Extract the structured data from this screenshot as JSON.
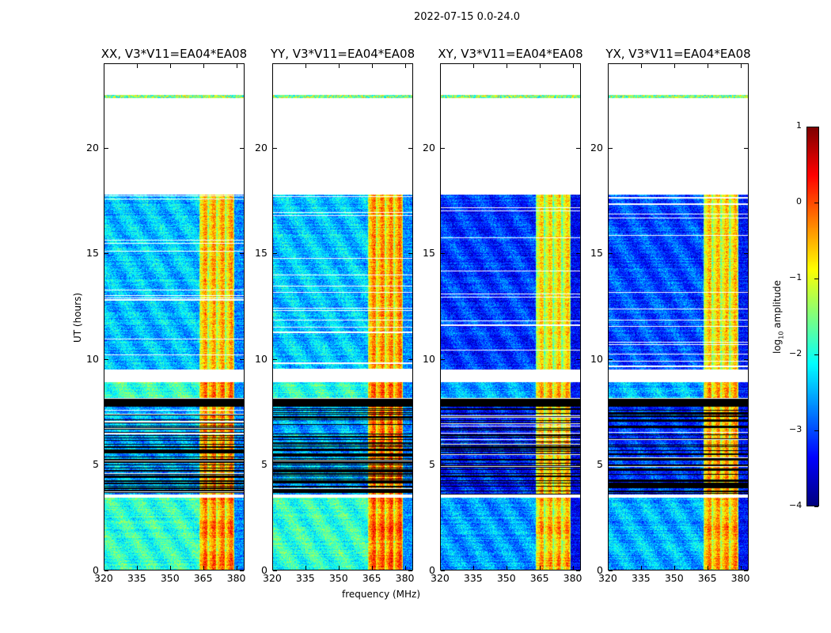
{
  "figure": {
    "suptitle": "2022-07-15 0.0-24.0",
    "xlabel": "frequency (MHz)",
    "ylabel": "UT (hours)",
    "colorbar_label_prefix": "log",
    "colorbar_label_sub": "10",
    "colorbar_label_suffix": " amplitude"
  },
  "chart_data": {
    "type": "heatmap",
    "colormap": "jet",
    "xlim": [
      320,
      383.7
    ],
    "ylim": [
      0,
      24
    ],
    "xticks": [
      320,
      335,
      350,
      365,
      380
    ],
    "yticks": [
      0,
      5,
      10,
      15,
      20
    ],
    "colorbar": {
      "range": [
        -4,
        1
      ],
      "ticks": [
        "1",
        "0",
        "−1",
        "−2",
        "−3",
        "−4"
      ],
      "tick_values": [
        1,
        0,
        -1,
        -2,
        -3,
        -4
      ]
    },
    "bright_band_MHz": [
      363.5,
      379.5
    ],
    "edge_band_MHz": [
      379.5,
      383.7
    ],
    "segments_hours": [
      {
        "range": [
          0,
          3.4
        ],
        "kind": "quiet"
      },
      {
        "range": [
          3.55,
          7.75
        ],
        "kind": "flagged"
      },
      {
        "range": [
          7.75,
          8.1
        ],
        "kind": "black"
      },
      {
        "range": [
          8.15,
          8.9
        ],
        "kind": "quiet"
      },
      {
        "range": [
          9.5,
          17.8
        ],
        "kind": "active"
      },
      {
        "range": [
          22.4,
          22.55
        ],
        "kind": "thin"
      }
    ],
    "panels": [
      {
        "title": "XX, V3*V11=EA04*EA08",
        "background_level": -1.9,
        "band_level": -0.35
      },
      {
        "title": "YY, V3*V11=EA04*EA08",
        "background_level": -1.9,
        "band_level": -0.2
      },
      {
        "title": "XY, V3*V11=EA04*EA08",
        "background_level": -2.6,
        "band_level": -0.6
      },
      {
        "title": "YX, V3*V11=EA04*EA08",
        "background_level": -2.5,
        "band_level": -0.5
      }
    ]
  }
}
